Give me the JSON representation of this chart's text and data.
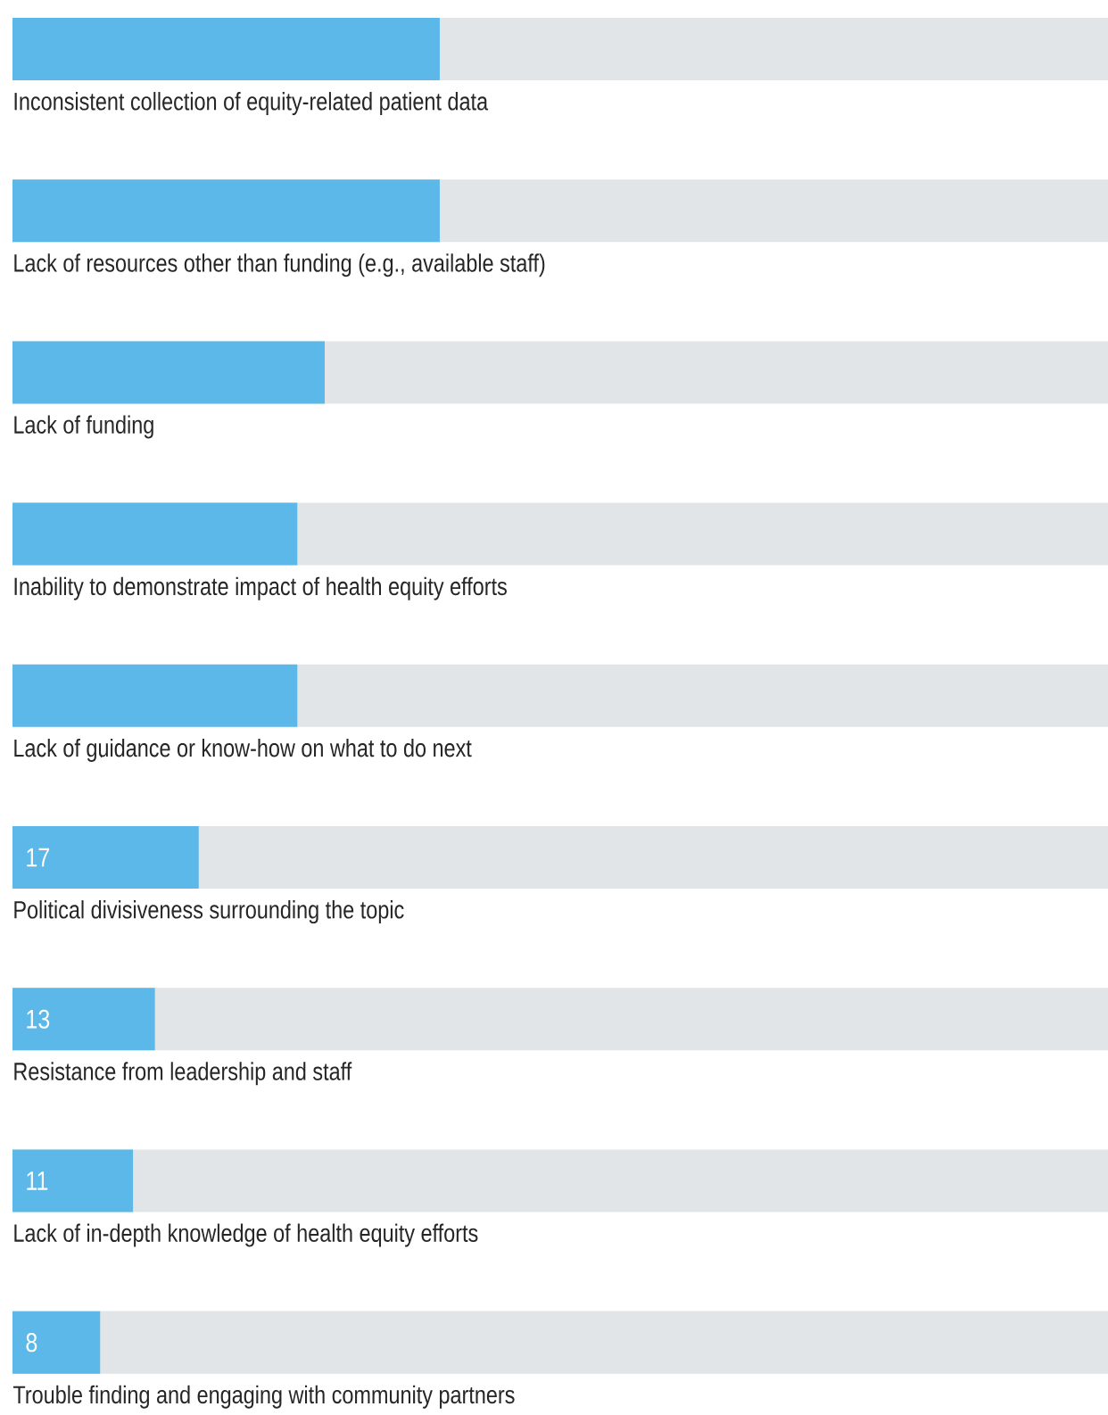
{
  "chart_data": {
    "type": "bar",
    "orientation": "horizontal",
    "categories": [
      "Inconsistent collection of equity-related patient data",
      "Lack of resources other than funding (e.g., available staff)",
      "Lack of funding",
      "Inability to demonstrate impact of health equity efforts",
      "Lack of guidance or know-how on what to do next",
      "Political divisiveness surrounding the topic",
      "Resistance from leadership and staff",
      "Lack of in-depth knowledge of health equity efforts",
      "Trouble finding and engaging with community partners"
    ],
    "values": [
      39,
      39,
      28.5,
      26,
      26,
      17,
      13,
      11,
      8
    ],
    "value_labels": [
      null,
      null,
      null,
      null,
      null,
      "17",
      "13",
      "11",
      "8"
    ],
    "color": "#5bb8e8",
    "xlim": [
      0,
      100
    ]
  }
}
